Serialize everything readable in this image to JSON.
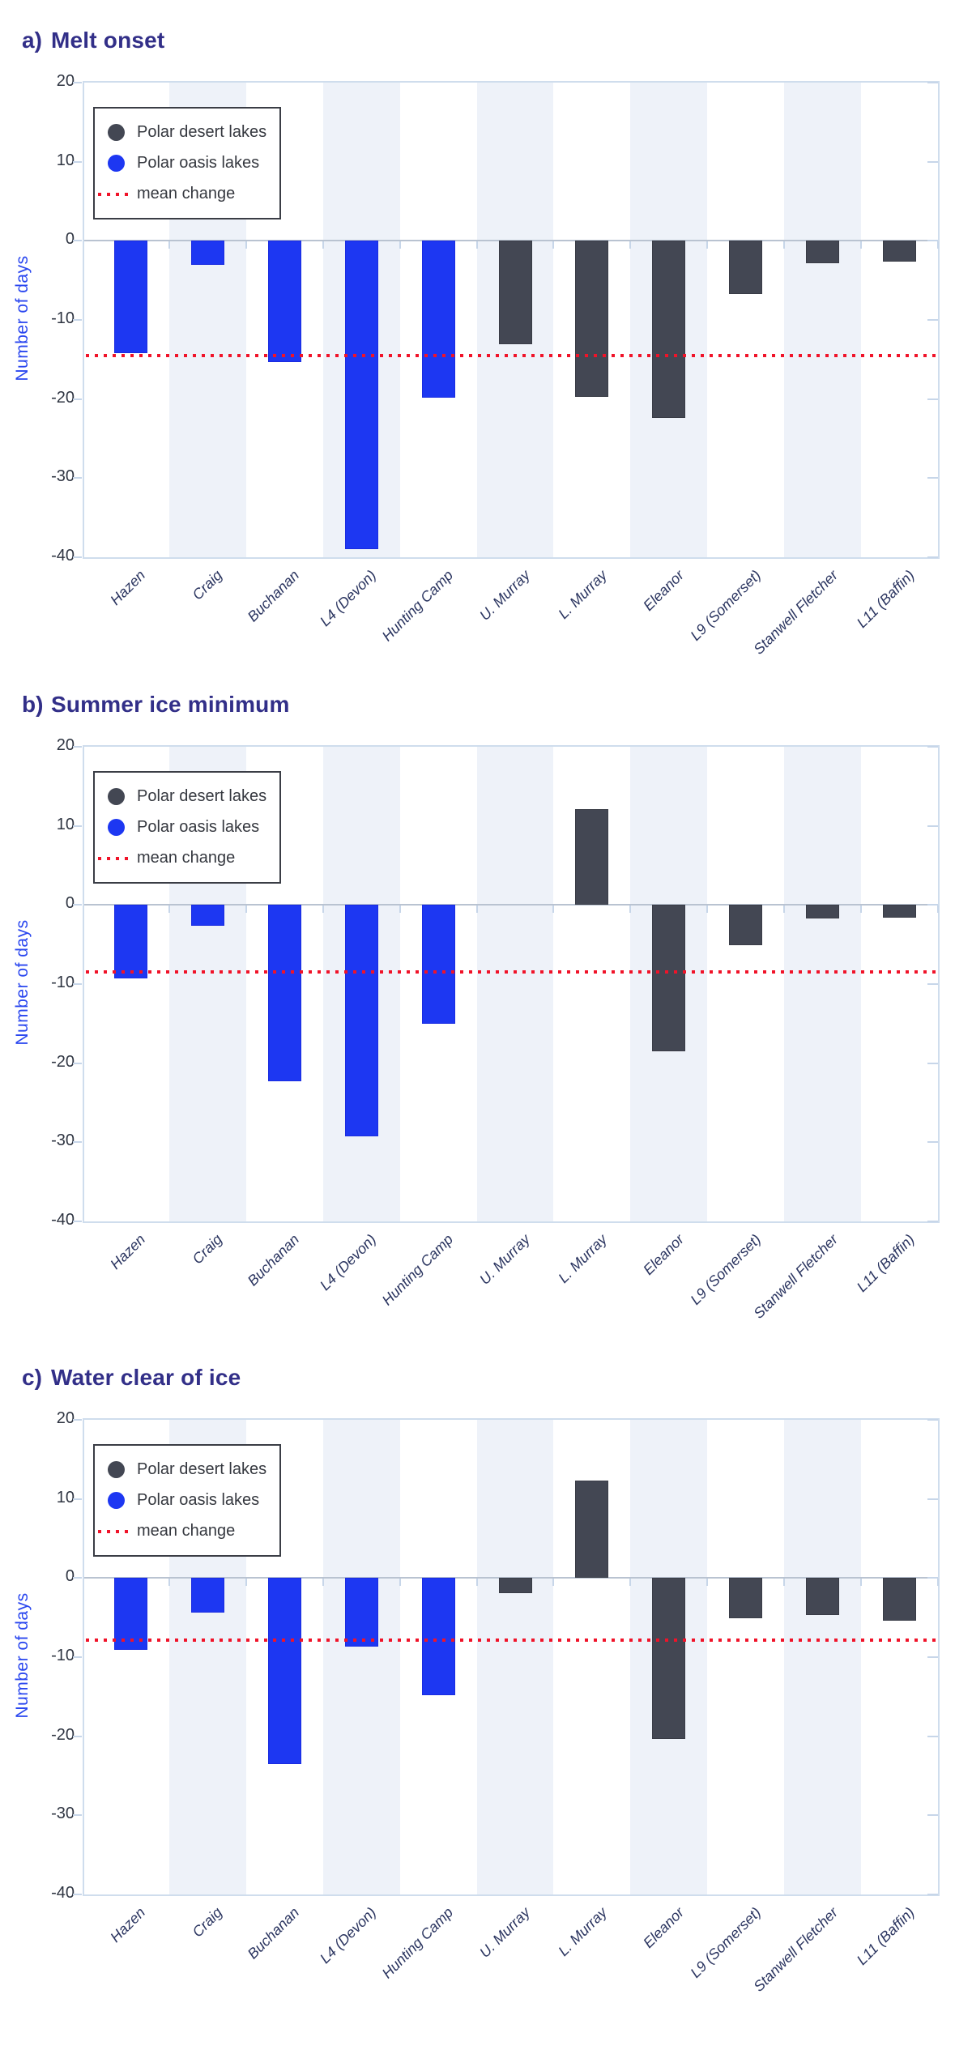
{
  "figure": {
    "background": "#ffffff",
    "y_axis_title": "Number of days",
    "panel_labels": [
      "a)",
      "b)",
      "c)"
    ]
  },
  "legend": {
    "items": [
      {
        "label": "Polar desert lakes",
        "type": "dot",
        "color": "#434753"
      },
      {
        "label": "Polar oasis lakes",
        "type": "dot",
        "color": "#1d37f2"
      },
      {
        "label": "mean change",
        "type": "dotted-line",
        "color": "#f01329"
      }
    ]
  },
  "colors": {
    "title": "#322f88",
    "oasis_bar": "#1d37f2",
    "desert_bar": "#434753",
    "mean_line": "#f01329",
    "stripe": "#eef2f9",
    "axis_border": "#cfdded",
    "zero_line": "#b9c3d1",
    "y_axis_title": "#2946ef",
    "tick_label": "#2f3542",
    "x_label": "#2b3560"
  },
  "chart_data": [
    {
      "type": "bar",
      "panel_label": "a)",
      "title": "Melt onset",
      "ylabel": "Number of days",
      "ylim": [
        -40,
        20
      ],
      "yticks": [
        20,
        10,
        0,
        -10,
        -20,
        -30,
        -40
      ],
      "grid": false,
      "legend_position": "upper left",
      "striped_columns": [
        1,
        3,
        5,
        7,
        9
      ],
      "categories": [
        "Hazen",
        "Craig",
        "Buchanan",
        "L4 (Devon)",
        "Hunting Camp",
        "U. Murray",
        "L. Murray",
        "Eleanor",
        "L9 (Somerset)",
        "Stanwell Fletcher",
        "L11 (Baffin)"
      ],
      "series": [
        {
          "name": "Polar oasis lakes",
          "color": "#1d37f2",
          "values": [
            -14.2,
            -3.0,
            -15.3,
            -39.0,
            -19.8,
            null,
            null,
            null,
            null,
            null,
            null
          ]
        },
        {
          "name": "Polar desert lakes",
          "color": "#434753",
          "values": [
            null,
            null,
            null,
            null,
            null,
            -13.1,
            -19.7,
            -22.4,
            -6.7,
            -2.8,
            -2.6
          ]
        }
      ],
      "mean_change": -14.5
    },
    {
      "type": "bar",
      "panel_label": "b)",
      "title": "Summer ice minimum",
      "ylabel": "Number of days",
      "ylim": [
        -40,
        20
      ],
      "yticks": [
        20,
        10,
        0,
        -10,
        -20,
        -30,
        -40
      ],
      "grid": false,
      "legend_position": "upper left",
      "striped_columns": [
        1,
        3,
        5,
        7,
        9
      ],
      "categories": [
        "Hazen",
        "Craig",
        "Buchanan",
        "L4 (Devon)",
        "Hunting Camp",
        "U. Murray",
        "L. Murray",
        "Eleanor",
        "L9 (Somerset)",
        "Stanwell Fletcher",
        "L11 (Baffin)"
      ],
      "series": [
        {
          "name": "Polar oasis lakes",
          "color": "#1d37f2",
          "values": [
            -9.3,
            -2.6,
            -22.3,
            -29.2,
            -15.0,
            null,
            null,
            null,
            null,
            null,
            null
          ]
        },
        {
          "name": "Polar desert lakes",
          "color": "#434753",
          "values": [
            null,
            null,
            null,
            null,
            null,
            0,
            12.1,
            -18.5,
            -5.1,
            -1.7,
            -1.6
          ]
        }
      ],
      "mean_change": -8.5
    },
    {
      "type": "bar",
      "panel_label": "c)",
      "title": "Water clear of ice",
      "ylabel": "Number of days",
      "ylim": [
        -40,
        20
      ],
      "yticks": [
        20,
        10,
        0,
        -10,
        -20,
        -30,
        -40
      ],
      "grid": false,
      "legend_position": "upper left",
      "striped_columns": [
        1,
        3,
        5,
        7,
        9
      ],
      "categories": [
        "Hazen",
        "Craig",
        "Buchanan",
        "L4 (Devon)",
        "Hunting Camp",
        "U. Murray",
        "L. Murray",
        "Eleanor",
        "L9 (Somerset)",
        "Stanwell Fletcher",
        "L11 (Baffin)"
      ],
      "series": [
        {
          "name": "Polar oasis lakes",
          "color": "#1d37f2",
          "values": [
            -9.1,
            -4.4,
            -23.5,
            -8.7,
            -14.8,
            null,
            null,
            null,
            null,
            null,
            null
          ]
        },
        {
          "name": "Polar desert lakes",
          "color": "#434753",
          "values": [
            null,
            null,
            null,
            null,
            null,
            -1.9,
            12.3,
            -20.3,
            -5.1,
            -4.7,
            -5.4
          ]
        }
      ],
      "mean_change": -7.8
    }
  ]
}
